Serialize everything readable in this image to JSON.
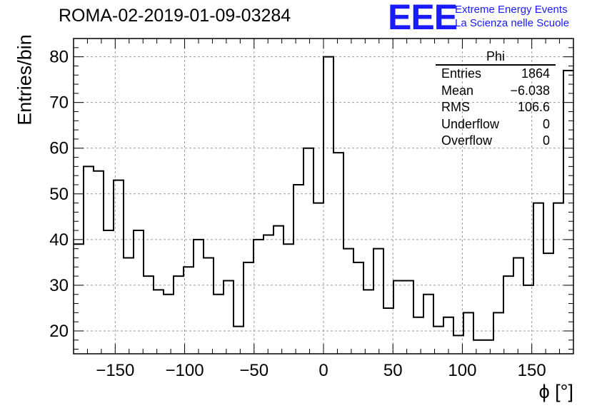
{
  "title": "ROMA-02-2019-01-09-03284",
  "logo": {
    "mark": "EEE",
    "line1": "Extreme Energy Events",
    "line2": "La Scienza nelle Scuole"
  },
  "stats_box": {
    "name": "Phi",
    "rows": [
      {
        "label": "Entries",
        "value": "1864"
      },
      {
        "label": "Mean",
        "value": "−6.038"
      },
      {
        "label": "RMS",
        "value": "106.6"
      },
      {
        "label": "Underflow",
        "value": "0"
      },
      {
        "label": "Overflow",
        "value": "0"
      }
    ]
  },
  "chart_data": {
    "type": "bar",
    "style": "step-histogram",
    "title": "ROMA-02-2019-01-09-03284",
    "xlabel": "ϕ [°]",
    "ylabel": "Entries/bin",
    "xlim": [
      -180,
      180
    ],
    "ylim": [
      15,
      84
    ],
    "x_ticks": [
      "−150",
      "−100",
      "−50",
      "0",
      "50",
      "100",
      "150"
    ],
    "y_ticks": [
      "20",
      "30",
      "40",
      "50",
      "60",
      "70",
      "80"
    ],
    "bin_width": 7.2,
    "values": [
      39,
      56,
      55,
      42,
      53,
      36,
      42,
      32,
      29,
      28,
      32,
      34,
      40,
      36,
      28,
      31,
      21,
      35,
      40,
      41,
      43,
      39,
      52,
      60,
      48,
      80,
      59,
      38,
      35,
      29,
      38,
      25,
      31,
      31,
      23,
      28,
      21,
      23,
      19,
      24,
      18,
      18,
      24,
      32,
      36,
      30,
      48,
      37,
      48,
      77
    ],
    "grid": true,
    "line_color": "#000000"
  }
}
